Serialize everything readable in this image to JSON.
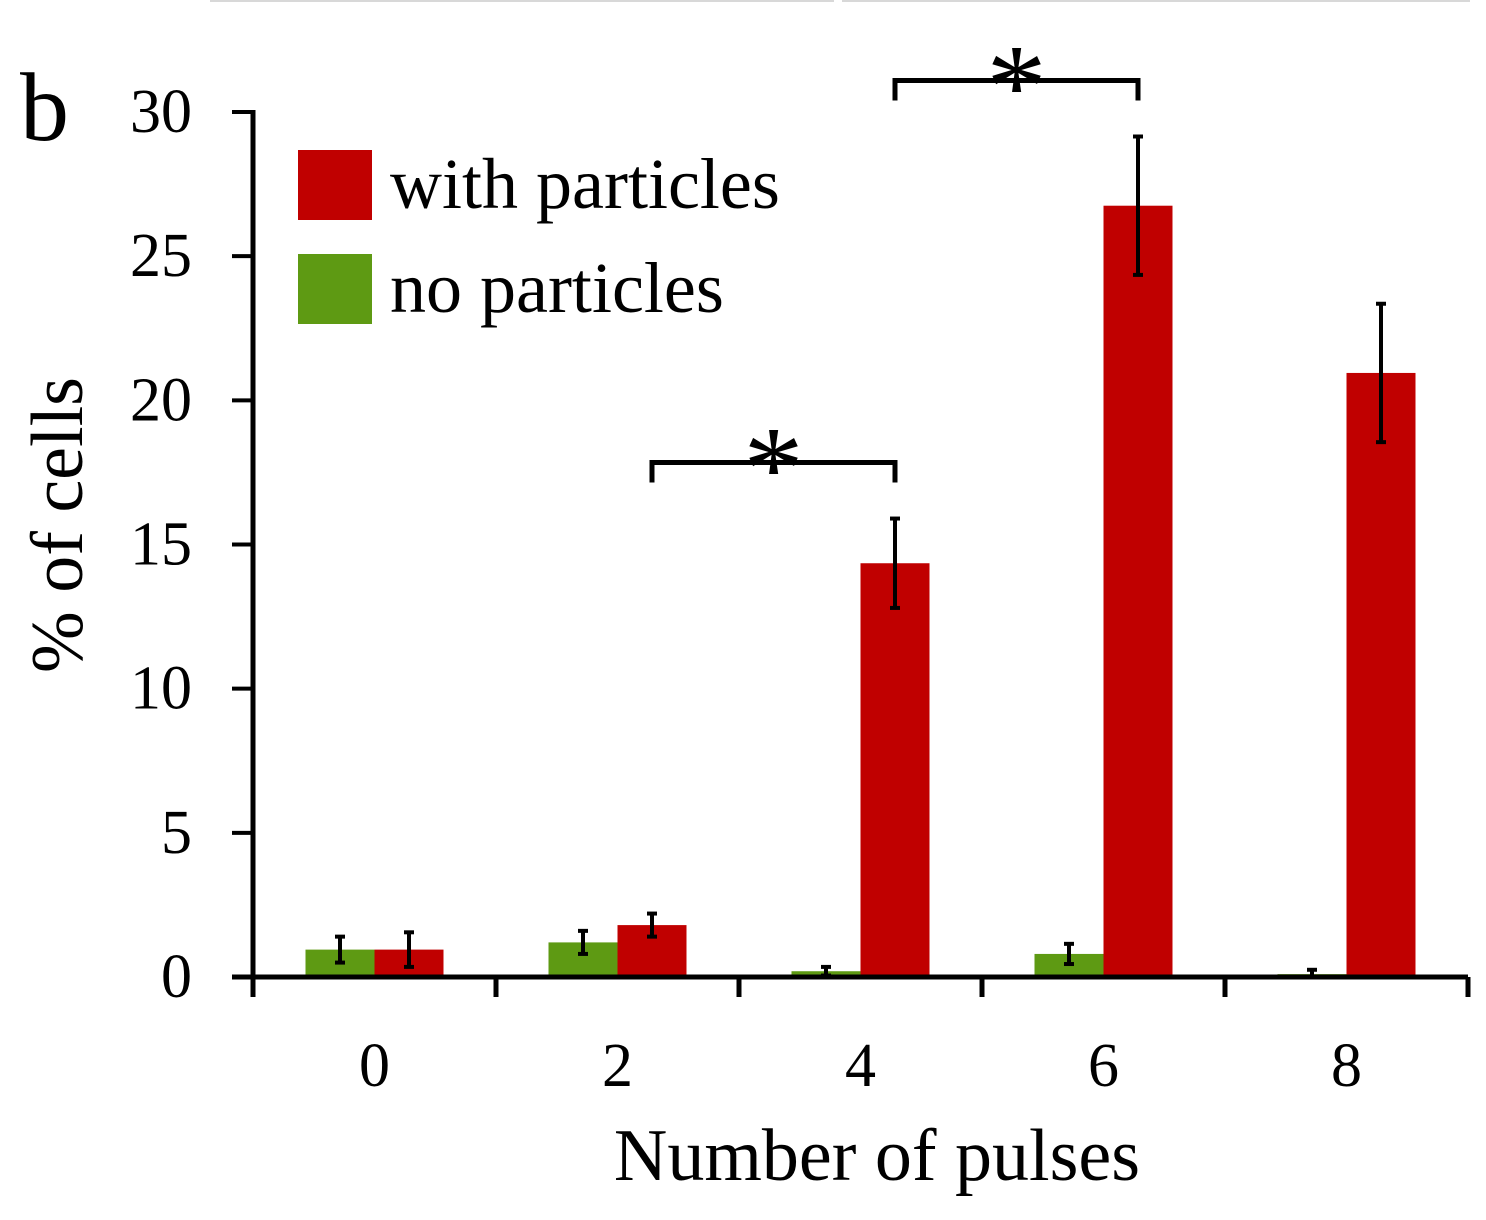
{
  "panel_label": "b",
  "chart_data": {
    "type": "bar",
    "xlabel": "Number of pulses",
    "ylabel": "% of cells",
    "categories": [
      "0",
      "2",
      "4",
      "6",
      "8"
    ],
    "ylim": [
      0,
      30
    ],
    "yticks": [
      0,
      5,
      10,
      15,
      20,
      25,
      30
    ],
    "grid": false,
    "legend_position": "top-left",
    "series": [
      {
        "name": "no particles",
        "color": "#5e9a13",
        "values": [
          0.95,
          1.2,
          0.2,
          0.8,
          0.1
        ],
        "errors": [
          0.45,
          0.4,
          0.15,
          0.35,
          0.15
        ]
      },
      {
        "name": "with particles",
        "color": "#c00000",
        "values": [
          0.95,
          1.8,
          14.35,
          26.75,
          20.95
        ],
        "errors": [
          0.6,
          0.4,
          1.55,
          2.4,
          2.4
        ]
      }
    ],
    "legend_order": [
      "with particles",
      "no particles"
    ],
    "annotations": [
      {
        "text": "*",
        "type": "significance",
        "from": {
          "category": "2",
          "series": "with particles"
        },
        "to": {
          "category": "4",
          "series": "with particles"
        }
      },
      {
        "text": "*",
        "type": "significance",
        "from": {
          "category": "4",
          "series": "with particles"
        },
        "to": {
          "category": "6",
          "series": "with particles"
        }
      }
    ]
  }
}
